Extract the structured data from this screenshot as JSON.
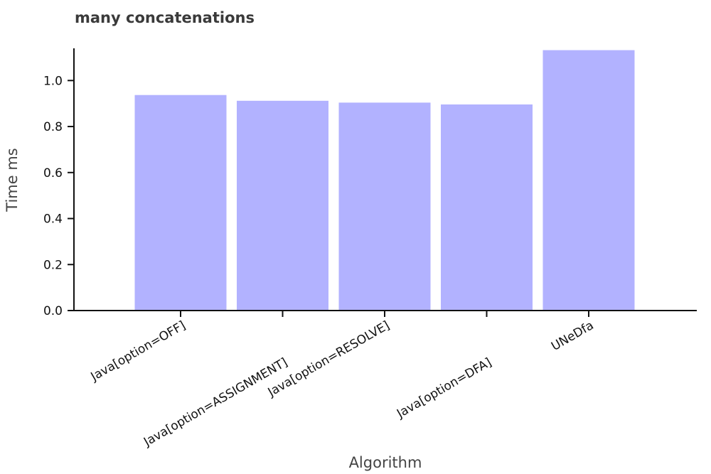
{
  "chart_data": {
    "type": "bar",
    "title": "many concatenations",
    "xlabel": "Algorithm",
    "ylabel": "Time ms",
    "categories": [
      "Java[option=OFF]",
      "Java[option=ASSIGNMENT]",
      "Java[option=RESOLVE]",
      "Java[option=DFA]",
      "UNeDfa"
    ],
    "values": [
      0.937,
      0.912,
      0.904,
      0.896,
      1.132
    ],
    "yticks": [
      "0.0",
      "0.2",
      "0.4",
      "0.6",
      "0.8",
      "1.0"
    ],
    "ylim": [
      0,
      1.14
    ],
    "grid": false,
    "bar_color": "#b2b2ff"
  }
}
